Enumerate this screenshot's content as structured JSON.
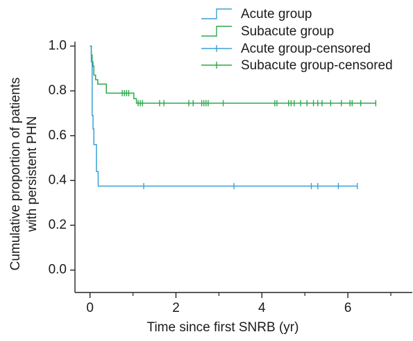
{
  "chart_data": {
    "type": "line",
    "subtype": "kaplan-meier step",
    "xlabel": "Time since first SNRB (yr)",
    "ylabel_lines": [
      "Cumulative proportion of patients",
      "with persistent PHN"
    ],
    "xlim": [
      -0.35,
      7.5
    ],
    "ylim": [
      -0.1,
      1.02
    ],
    "x_ticks": [
      0,
      2,
      4,
      6
    ],
    "x_minor_ticks": [
      1,
      3,
      5,
      7
    ],
    "x_tick_labels": [
      "0",
      "2",
      "4",
      "6"
    ],
    "y_ticks": [
      0.0,
      0.2,
      0.4,
      0.6,
      0.8,
      1.0
    ],
    "y_tick_labels": [
      "0.0",
      "0.2",
      "0.4",
      "0.6",
      "0.8",
      "1.0"
    ],
    "grid": false,
    "legend_position": "top-right",
    "series": [
      {
        "name": "Acute group",
        "color": "#3a9fd6",
        "steps": [
          [
            0,
            1.0
          ],
          [
            0.03,
            0.93
          ],
          [
            0.05,
            0.69
          ],
          [
            0.07,
            0.63
          ],
          [
            0.09,
            0.56
          ],
          [
            0.15,
            0.44
          ],
          [
            0.19,
            0.375
          ],
          [
            6.22,
            0.375
          ]
        ],
        "censored_name": "Acute group-censored",
        "censored_x": [
          1.25,
          3.35,
          5.15,
          5.3,
          5.78,
          6.22
        ]
      },
      {
        "name": "Subacute group",
        "color": "#2aa84a",
        "steps": [
          [
            0,
            1.0
          ],
          [
            0.03,
            0.96
          ],
          [
            0.05,
            0.93
          ],
          [
            0.07,
            0.91
          ],
          [
            0.09,
            0.87
          ],
          [
            0.13,
            0.85
          ],
          [
            0.18,
            0.83
          ],
          [
            0.38,
            0.79
          ],
          [
            1.02,
            0.765
          ],
          [
            1.08,
            0.745
          ],
          [
            6.65,
            0.745
          ]
        ],
        "censored_name": "Subacute group-censored",
        "censored_x": [
          0.75,
          0.8,
          0.85,
          0.9,
          1.12,
          1.17,
          1.22,
          1.62,
          1.72,
          2.3,
          2.4,
          2.6,
          2.65,
          2.7,
          2.75,
          3.1,
          4.3,
          4.35,
          4.62,
          4.68,
          4.75,
          4.9,
          5.05,
          5.2,
          5.3,
          5.4,
          5.6,
          5.85,
          6.05,
          6.1,
          6.3,
          6.65
        ]
      }
    ]
  }
}
